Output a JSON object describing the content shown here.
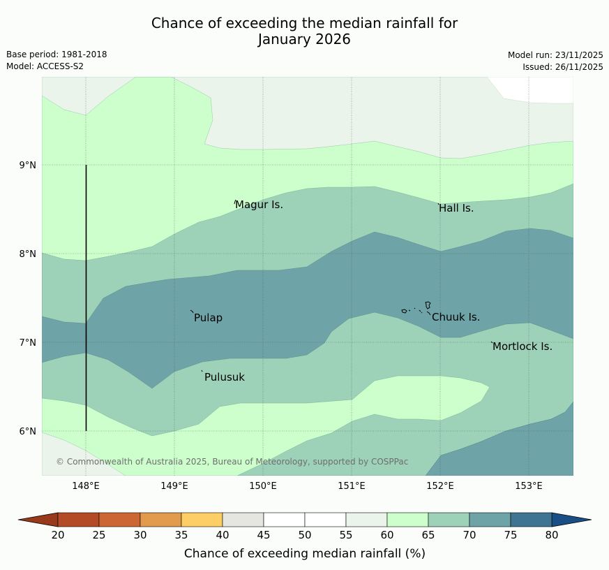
{
  "title": {
    "line1": "Chance of exceeding the median rainfall for",
    "line2": "January 2026"
  },
  "meta": {
    "base_period": "Base period: 1981-2018",
    "model": "Model: ACCESS-S2",
    "model_run": "Model run: 23/11/2025",
    "issued": "Issued: 26/11/2025"
  },
  "map": {
    "lon_ticks": [
      "148°E",
      "149°E",
      "150°E",
      "151°E",
      "152°E",
      "153°E"
    ],
    "lat_ticks": [
      "9°N",
      "8°N",
      "7°N",
      "6°N"
    ],
    "places": [
      {
        "name": "Magur Is."
      },
      {
        "name": "Hall Is."
      },
      {
        "name": "Pulap"
      },
      {
        "name": "Chuuk Is."
      },
      {
        "name": "Mortlock Is."
      },
      {
        "name": "Pulusuk"
      }
    ],
    "copyright": "© Commonwealth of Australia 2025, Bureau of Meteorology, supported by COSPPac"
  },
  "colorbar": {
    "label": "Chance of exceeding median rainfall (%)",
    "ticks": [
      "20",
      "25",
      "30",
      "35",
      "40",
      "45",
      "50",
      "55",
      "60",
      "65",
      "70",
      "75",
      "80"
    ],
    "colors": [
      "#b34b26",
      "#cc6634",
      "#e29a4c",
      "#fdcd66",
      "#e6e6e0",
      "#ffffff",
      "#ffffff",
      "#eaf4ea",
      "#ccffcc",
      "#9dd1b8",
      "#6ea3a8",
      "#3f7492"
    ],
    "under_color": "#9a3a1c",
    "over_color": "#1a4f86"
  }
}
